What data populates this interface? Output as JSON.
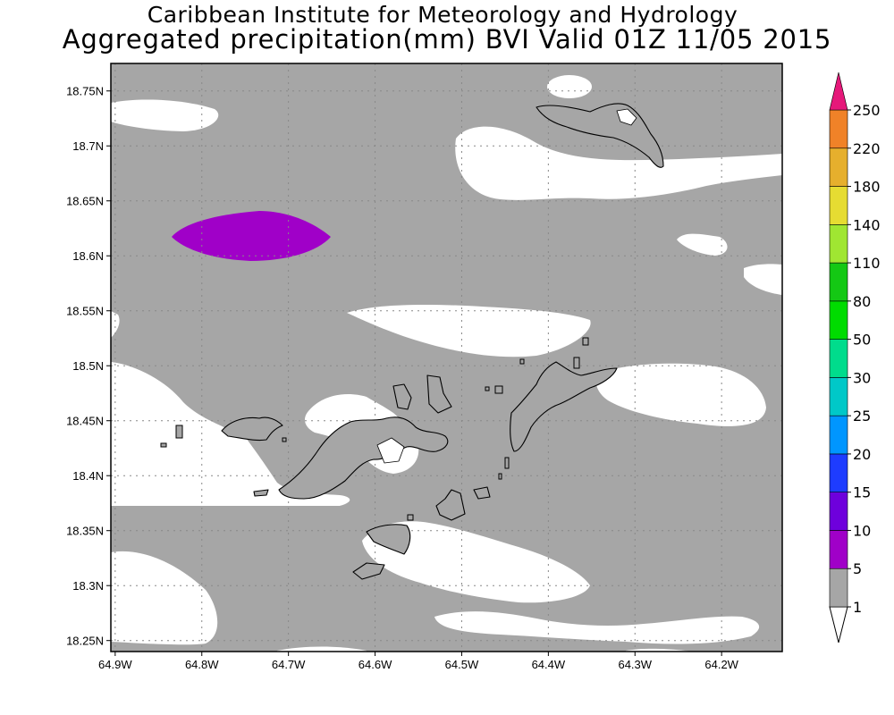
{
  "title": {
    "line1": "Caribbean Institute for Meteorology and Hydrology",
    "line2": "Aggregated precipitation(mm) BVI Valid 01Z 11/05 2015"
  },
  "chart_data": {
    "type": "map",
    "xaxis": {
      "ticks": [
        "64.9W",
        "64.8W",
        "64.7W",
        "64.6W",
        "64.5W",
        "64.4W",
        "64.3W",
        "64.2W"
      ],
      "range": [
        -64.905,
        -64.13
      ]
    },
    "yaxis": {
      "ticks": [
        "18.75N",
        "18.7N",
        "18.65N",
        "18.6N",
        "18.55N",
        "18.5N",
        "18.45N",
        "18.4N",
        "18.35N",
        "18.3N",
        "18.25N"
      ],
      "range": [
        18.24,
        18.775
      ]
    },
    "grid": true,
    "colorbar": {
      "labels": [
        "1",
        "5",
        "10",
        "15",
        "20",
        "25",
        "30",
        "50",
        "80",
        "110",
        "140",
        "180",
        "220",
        "250"
      ],
      "colors": [
        "#a6a6a6",
        "#a000c8",
        "#6e00dc",
        "#1e3cff",
        "#0096ff",
        "#00c8c8",
        "#00dc8c",
        "#00dc00",
        "#14c814",
        "#a0e632",
        "#e6dc32",
        "#e6af2d",
        "#f08228",
        "#fa3c3c",
        "#e6187a"
      ]
    },
    "fields": [
      {
        "range_mm": "1-5",
        "color": "#a6a6a6",
        "area": "most of domain"
      },
      {
        "range_mm": "5-10",
        "color": "#a000c8",
        "area": "isolated cell near 64.73W 18.625N"
      }
    ]
  }
}
